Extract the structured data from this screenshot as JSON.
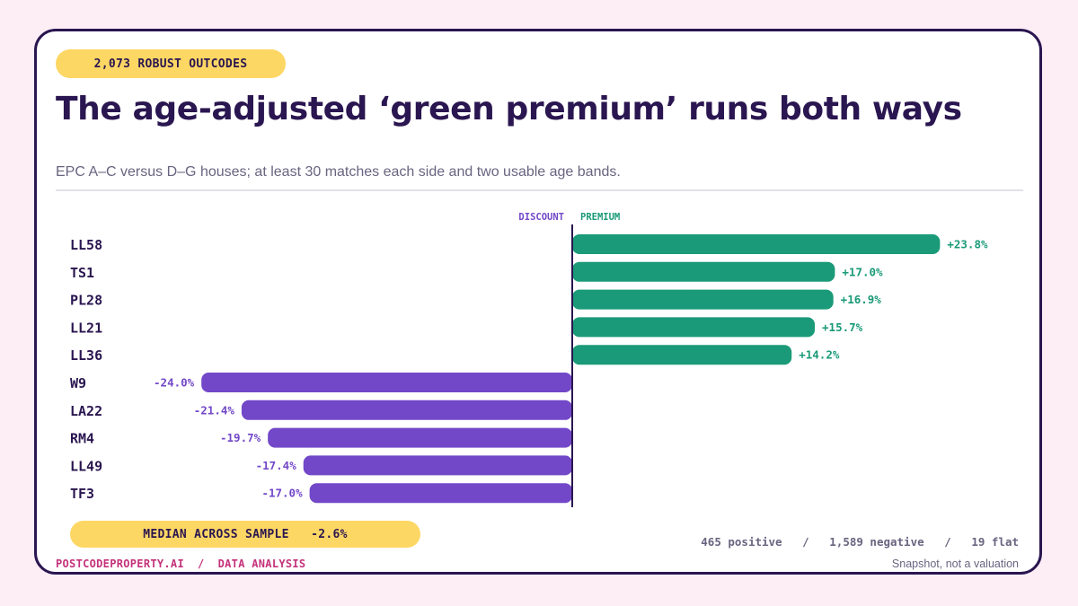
{
  "badge": "2,073 ROBUST OUTCODES",
  "title": "The age-adjusted ‘green premium’ runs both ways",
  "subtitle": "EPC A–C versus D–G houses; at least 30 matches each side and two usable age bands.",
  "median": {
    "label": "MEDIAN ACROSS SAMPLE",
    "value": "-2.6%"
  },
  "footer": {
    "brand": "POSTCODEPROPERTY.AI",
    "separator": "/",
    "section": "DATA ANALYSIS",
    "counts": [
      "465 positive",
      "1,589 negative",
      "19 flat"
    ],
    "counts_separator": "/",
    "note": "Snapshot, not a valuation"
  },
  "chart_data": {
    "type": "bar",
    "orientation": "horizontal",
    "axis_labels": {
      "negative": "DISCOUNT",
      "positive": "PREMIUM"
    },
    "categories": [
      "LL58",
      "TS1",
      "PL28",
      "LL21",
      "LL36",
      "W9",
      "LA22",
      "RM4",
      "LL49",
      "TF3"
    ],
    "values": [
      23.8,
      17.0,
      16.9,
      15.7,
      14.2,
      -24.0,
      -21.4,
      -19.7,
      -17.4,
      -17.0
    ],
    "value_labels": [
      "+23.8%",
      "+17.0%",
      "+16.9%",
      "+15.7%",
      "+14.2%",
      "-24.0%",
      "-21.4%",
      "-19.7%",
      "-17.4%",
      "-17.0%"
    ],
    "xlim": [
      -24.0,
      23.8
    ],
    "colors": {
      "positive": "#1a9a78",
      "negative": "#7248c8",
      "axis": "#2a1650",
      "category": "#2a1650"
    }
  }
}
